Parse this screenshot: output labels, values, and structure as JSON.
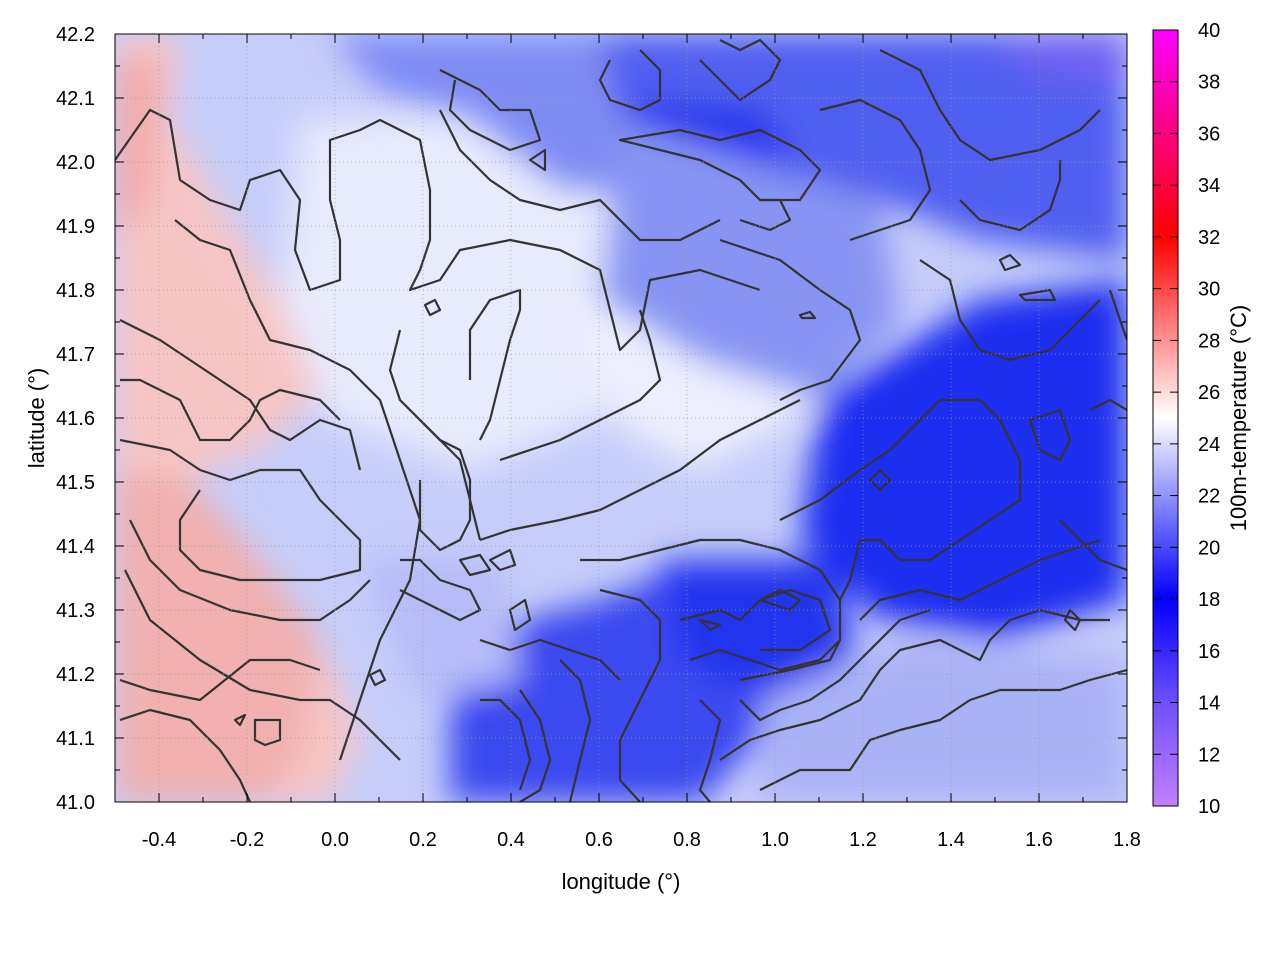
{
  "chart_data": {
    "type": "heatmap",
    "title": "",
    "xlabel": "longitude (°)",
    "ylabel": "latitude (°)",
    "colorbar_label": "100m-temperature (°C)",
    "xlim": [
      -0.5,
      1.8
    ],
    "ylim": [
      41.0,
      42.2
    ],
    "x_ticks": [
      -0.4,
      -0.2,
      0.0,
      0.2,
      0.4,
      0.6,
      0.8,
      1.0,
      1.2,
      1.4,
      1.6,
      1.8
    ],
    "x_tick_labels": [
      "-0.4",
      "-0.2",
      "0.0",
      "0.2",
      "0.4",
      "0.6",
      "0.8",
      "1.0",
      "1.2",
      "1.4",
      "1.6",
      "1.8"
    ],
    "y_ticks": [
      41.0,
      41.1,
      41.2,
      41.3,
      41.4,
      41.5,
      41.6,
      41.7,
      41.8,
      41.9,
      42.0,
      42.1,
      42.2
    ],
    "y_tick_labels": [
      "41.0",
      "41.1",
      "41.2",
      "41.3",
      "41.4",
      "41.5",
      "41.6",
      "41.7",
      "41.8",
      "41.9",
      "42.0",
      "42.1",
      "42.2"
    ],
    "colorbar_range": [
      10,
      40
    ],
    "colorbar_ticks": [
      10,
      12,
      14,
      16,
      18,
      20,
      22,
      24,
      26,
      28,
      30,
      32,
      34,
      36,
      38,
      40
    ],
    "colorbar_tick_labels": [
      "10",
      "12",
      "14",
      "16",
      "18",
      "20",
      "22",
      "24",
      "26",
      "28",
      "30",
      "32",
      "34",
      "36",
      "38",
      "40"
    ],
    "colormap": [
      {
        "value": 10,
        "color": "#c080ff"
      },
      {
        "value": 14,
        "color": "#7050ff"
      },
      {
        "value": 18,
        "color": "#0000ff"
      },
      {
        "value": 25,
        "color": "#ffffff"
      },
      {
        "value": 32,
        "color": "#ff0000"
      },
      {
        "value": 40,
        "color": "#ff00ff"
      }
    ],
    "grid": true,
    "contour_color": "#333333",
    "field_regions": [
      {
        "region": "west edge (lon -0.5 to -0.3)",
        "temperature": 27
      },
      {
        "region": "southwest (lon -0.5 to 0.1, lat 41.0-41.3)",
        "temperature": 27
      },
      {
        "region": "central plain (lon 0.0-0.8, lat 41.4-41.9)",
        "temperature": 23
      },
      {
        "region": "southeast sea (lon 1.2-1.8, lat 41.0-41.2)",
        "temperature": 22
      },
      {
        "region": "east (lon 1.3-1.8, lat 41.4-42.0)",
        "temperature": 17
      },
      {
        "region": "northeast corner (lon 1.6-1.8, lat 42.1-42.2)",
        "temperature": 14
      },
      {
        "region": "south-central hills (lon 0.4-1.0, lat 41.0-41.3)",
        "temperature": 18
      }
    ]
  }
}
